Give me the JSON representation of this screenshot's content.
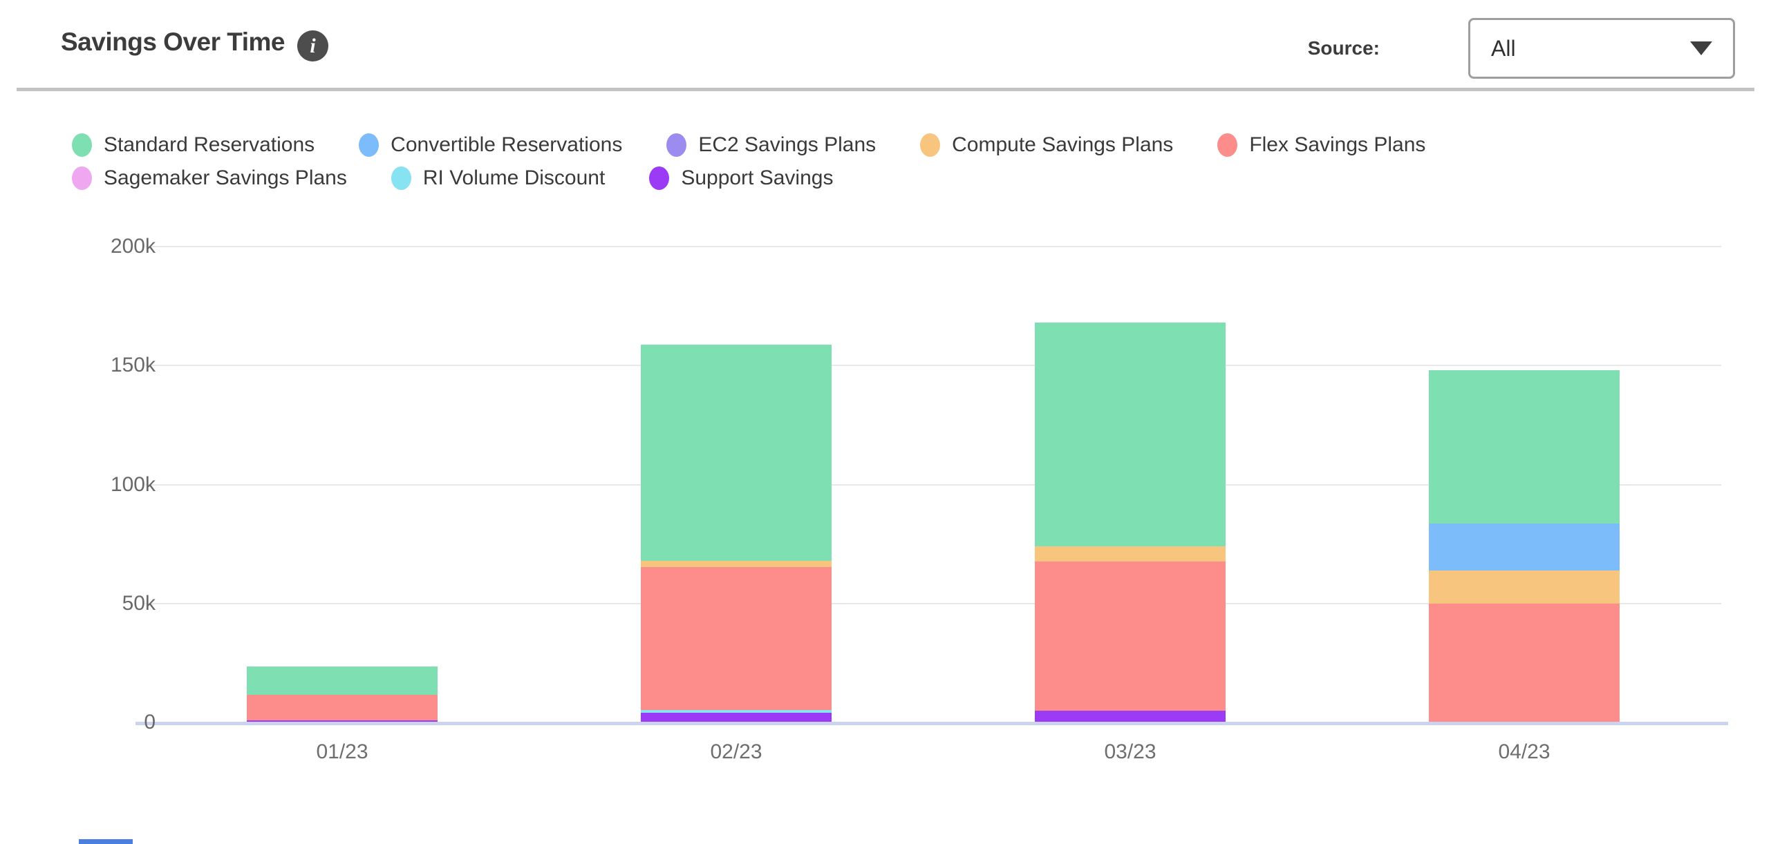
{
  "header": {
    "title": "Savings Over Time",
    "source_label": "Source:",
    "source_value": "All"
  },
  "chart_data": {
    "type": "bar",
    "stacked": true,
    "title": "Savings Over Time",
    "categories": [
      "01/23",
      "02/23",
      "03/23",
      "04/23"
    ],
    "series": [
      {
        "name": "Standard Reservations",
        "color": "#7ddfb2",
        "values": [
          12000,
          91000,
          94000,
          64500
        ]
      },
      {
        "name": "Convertible Reservations",
        "color": "#7cbcfa",
        "values": [
          0,
          0,
          0,
          19500
        ]
      },
      {
        "name": "EC2 Savings Plans",
        "color": "#9d8cf0",
        "values": [
          0,
          0,
          0,
          0
        ]
      },
      {
        "name": "Compute Savings Plans",
        "color": "#f8c57f",
        "values": [
          0,
          2600,
          6500,
          14000
        ]
      },
      {
        "name": "Flex Savings Plans",
        "color": "#fc8d8b",
        "values": [
          10500,
          60000,
          62500,
          50000
        ]
      },
      {
        "name": "Sagemaker Savings Plans",
        "color": "#efa8ef",
        "values": [
          0,
          0,
          0,
          0
        ]
      },
      {
        "name": "RI Volume Discount",
        "color": "#87e2f2",
        "values": [
          0,
          1200,
          0,
          0
        ]
      },
      {
        "name": "Support Savings",
        "color": "#9b3bf5",
        "values": [
          1000,
          4000,
          5000,
          0
        ]
      }
    ],
    "stack_order": [
      "Support Savings",
      "RI Volume Discount",
      "Flex Savings Plans",
      "Compute Savings Plans",
      "Convertible Reservations",
      "EC2 Savings Plans",
      "Sagemaker Savings Plans",
      "Standard Reservations"
    ],
    "legend_rows": [
      [
        "Standard Reservations",
        "Convertible Reservations",
        "EC2 Savings Plans",
        "Compute Savings Plans",
        "Flex Savings Plans"
      ],
      [
        "Sagemaker Savings Plans",
        "RI Volume Discount",
        "Support Savings"
      ]
    ],
    "legend_position": "top",
    "grid": true,
    "ylim": [
      0,
      200000
    ],
    "yticks": [
      {
        "label": "0",
        "value": 0
      },
      {
        "label": "50k",
        "value": 50000
      },
      {
        "label": "100k",
        "value": 100000
      },
      {
        "label": "150k",
        "value": 150000
      },
      {
        "label": "200k",
        "value": 200000
      }
    ]
  },
  "colors": {
    "axis_line": "#ccd3ee",
    "gridline": "#e8e8e8",
    "title_text": "#3c3c3c",
    "tick_text": "#696969",
    "divider": "#c3c3c3"
  }
}
